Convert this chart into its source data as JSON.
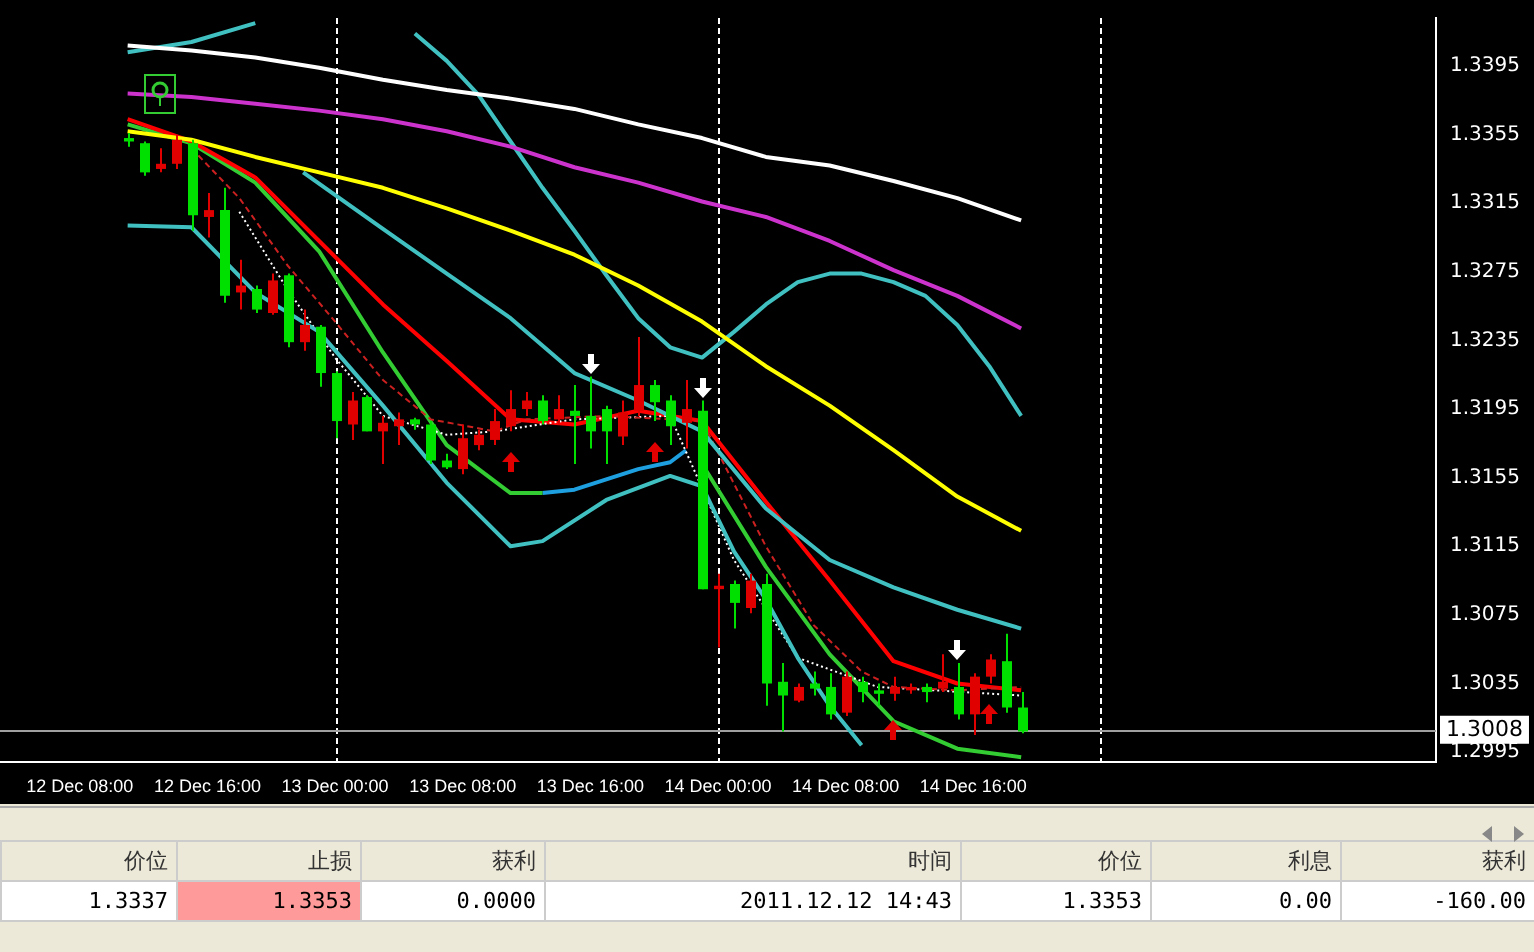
{
  "chart_data": {
    "type": "candlestick",
    "x": [
      "2011-12-12T11:00",
      "2011-12-12T12:00",
      "2011-12-12T13:00",
      "2011-12-12T14:00",
      "2011-12-12T15:00",
      "2011-12-12T16:00",
      "2011-12-12T17:00",
      "2011-12-12T18:00",
      "2011-12-12T19:00",
      "2011-12-12T20:00",
      "2011-12-12T21:00",
      "2011-12-12T22:00",
      "2011-12-12T23:00",
      "2011-12-13T00:00",
      "2011-12-13T01:00",
      "2011-12-13T02:00",
      "2011-12-13T03:00",
      "2011-12-13T04:00",
      "2011-12-13T05:00",
      "2011-12-13T06:00",
      "2011-12-13T07:00",
      "2011-12-13T08:00",
      "2011-12-13T09:00",
      "2011-12-13T10:00",
      "2011-12-13T11:00",
      "2011-12-13T12:00",
      "2011-12-13T13:00",
      "2011-12-13T14:00",
      "2011-12-13T15:00",
      "2011-12-13T16:00",
      "2011-12-13T17:00",
      "2011-12-13T18:00",
      "2011-12-13T19:00",
      "2011-12-13T20:00",
      "2011-12-13T21:00",
      "2011-12-13T22:00",
      "2011-12-13T23:00",
      "2011-12-14T00:00",
      "2011-12-14T01:00",
      "2011-12-14T02:00",
      "2011-12-14T03:00",
      "2011-12-14T04:00",
      "2011-12-14T05:00",
      "2011-12-14T06:00",
      "2011-12-14T07:00",
      "2011-12-14T08:00",
      "2011-12-14T09:00",
      "2011-12-14T10:00",
      "2011-12-14T11:00",
      "2011-12-14T12:00",
      "2011-12-14T13:00",
      "2011-12-14T14:00",
      "2011-12-14T15:00",
      "2011-12-14T16:00",
      "2011-12-14T17:00",
      "2011-12-14T18:00",
      "2011-12-14T19:00"
    ],
    "ohlc": [
      [
        1.3353,
        1.3356,
        1.3348,
        1.3351
      ],
      [
        1.335,
        1.3351,
        1.3331,
        1.3333
      ],
      [
        1.3335,
        1.3347,
        1.3333,
        1.3338
      ],
      [
        1.3338,
        1.3355,
        1.3335,
        1.3352
      ],
      [
        1.335,
        1.3352,
        1.3299,
        1.3308
      ],
      [
        1.3307,
        1.3321,
        1.3295,
        1.3311
      ],
      [
        1.3311,
        1.3324,
        1.3257,
        1.3261
      ],
      [
        1.3263,
        1.3282,
        1.3253,
        1.3267
      ],
      [
        1.3265,
        1.3267,
        1.3251,
        1.3253
      ],
      [
        1.3251,
        1.3274,
        1.325,
        1.327
      ],
      [
        1.3273,
        1.3274,
        1.3231,
        1.3234
      ],
      [
        1.3234,
        1.3253,
        1.3229,
        1.3244
      ],
      [
        1.3243,
        1.3244,
        1.3208,
        1.3216
      ],
      [
        1.3216,
        1.3217,
        1.3178,
        1.3188
      ],
      [
        1.3186,
        1.3205,
        1.3177,
        1.32
      ],
      [
        1.3202,
        1.3203,
        1.3182,
        1.3182
      ],
      [
        1.3182,
        1.3191,
        1.3163,
        1.3187
      ],
      [
        1.3185,
        1.3193,
        1.3174,
        1.3189
      ],
      [
        1.3189,
        1.319,
        1.3183,
        1.3186
      ],
      [
        1.3186,
        1.3188,
        1.3163,
        1.3165
      ],
      [
        1.3165,
        1.3169,
        1.316,
        1.3161
      ],
      [
        1.316,
        1.3186,
        1.3157,
        1.3178
      ],
      [
        1.3174,
        1.3183,
        1.3171,
        1.318
      ],
      [
        1.3177,
        1.3195,
        1.3174,
        1.3188
      ],
      [
        1.3185,
        1.3206,
        1.3182,
        1.3195
      ],
      [
        1.3195,
        1.3205,
        1.3191,
        1.32
      ],
      [
        1.32,
        1.3203,
        1.3186,
        1.3188
      ],
      [
        1.3189,
        1.3203,
        1.3186,
        1.3195
      ],
      [
        1.3194,
        1.3209,
        1.3163,
        1.3191
      ],
      [
        1.3191,
        1.3214,
        1.3172,
        1.3182
      ],
      [
        1.3195,
        1.3197,
        1.3163,
        1.3182
      ],
      [
        1.3179,
        1.32,
        1.3174,
        1.3193
      ],
      [
        1.3194,
        1.3237,
        1.3191,
        1.3209
      ],
      [
        1.3209,
        1.3212,
        1.3188,
        1.3199
      ],
      [
        1.32,
        1.3203,
        1.3174,
        1.3185
      ],
      [
        1.3187,
        1.3212,
        1.3172,
        1.3195
      ],
      [
        1.3194,
        1.32,
        1.309,
        1.309
      ],
      [
        1.309,
        1.3099,
        1.3056,
        1.3092
      ],
      [
        1.3093,
        1.3095,
        1.3067,
        1.3082
      ],
      [
        1.3079,
        1.3099,
        1.3076,
        1.3095
      ],
      [
        1.3093,
        1.3099,
        1.3022,
        1.3035
      ],
      [
        1.3036,
        1.3047,
        1.3007,
        1.3028
      ],
      [
        1.3025,
        1.3035,
        1.3024,
        1.3033
      ],
      [
        1.3035,
        1.3042,
        1.3028,
        1.3032
      ],
      [
        1.3033,
        1.3041,
        1.3014,
        1.3017
      ],
      [
        1.3018,
        1.3042,
        1.3016,
        1.3039
      ],
      [
        1.3036,
        1.3039,
        1.3024,
        1.303
      ],
      [
        1.3031,
        1.3035,
        1.3022,
        1.3029
      ],
      [
        1.3029,
        1.3039,
        1.3025,
        1.3033
      ],
      [
        1.3031,
        1.3035,
        1.3029,
        1.3033
      ],
      [
        1.3033,
        1.3035,
        1.3024,
        1.303
      ],
      [
        1.3032,
        1.3052,
        1.303,
        1.3036
      ],
      [
        1.3033,
        1.3047,
        1.3014,
        1.3017
      ],
      [
        1.3017,
        1.3041,
        1.3005,
        1.3039
      ],
      [
        1.3039,
        1.3052,
        1.3035,
        1.3049
      ],
      [
        1.3048,
        1.3064,
        1.3018,
        1.3021
      ],
      [
        1.3021,
        1.303,
        1.3006,
        1.3007
      ]
    ],
    "colors": [
      "#00e000",
      "#00e000",
      "#e00000",
      "#e00000",
      "#00e000",
      "#e00000",
      "#00e000",
      "#e00000",
      "#00e000",
      "#e00000",
      "#00e000",
      "#e00000",
      "#00e000",
      "#00e000",
      "#e00000",
      "#00e000",
      "#e00000",
      "#e00000",
      "#00e000",
      "#00e000",
      "#00e000",
      "#e00000",
      "#e00000",
      "#e00000",
      "#e00000",
      "#e00000",
      "#00e000",
      "#e00000",
      "#00e000",
      "#00e000",
      "#00e000",
      "#e00000",
      "#e00000",
      "#00e000",
      "#00e000",
      "#e00000",
      "#00e000",
      "#e00000",
      "#00e000",
      "#e00000",
      "#00e000",
      "#00e000",
      "#e00000",
      "#00e000",
      "#00e000",
      "#e00000",
      "#00e000",
      "#00e000",
      "#e00000",
      "#e00000",
      "#00e000",
      "#e00000",
      "#00e000",
      "#e00000",
      "#e00000",
      "#00e000",
      "#00e000"
    ],
    "series": [
      {
        "type": "line",
        "color": "#ffffff",
        "x": [
          "2011-12-12T11:00",
          "2011-12-12T15:00",
          "2011-12-12T19:00",
          "2011-12-12T23:00",
          "2011-12-13T03:00",
          "2011-12-13T07:00",
          "2011-12-13T11:00",
          "2011-12-13T15:00",
          "2011-12-13T19:00",
          "2011-12-13T23:00",
          "2011-12-14T03:00",
          "2011-12-14T07:00",
          "2011-12-14T11:00",
          "2011-12-14T15:00",
          "2011-12-14T19:00"
        ],
        "values": [
          1.3407,
          1.3404,
          1.34,
          1.3394,
          1.3387,
          1.3381,
          1.3376,
          1.337,
          1.3361,
          1.3353,
          1.3342,
          1.3337,
          1.3328,
          1.3318,
          1.3305
        ]
      },
      {
        "type": "line",
        "color": "#cc33cc",
        "x": [
          "2011-12-12T11:00",
          "2011-12-12T15:00",
          "2011-12-12T19:00",
          "2011-12-12T23:00",
          "2011-12-13T03:00",
          "2011-12-13T07:00",
          "2011-12-13T11:00",
          "2011-12-13T15:00",
          "2011-12-13T19:00",
          "2011-12-13T23:00",
          "2011-12-14T03:00",
          "2011-12-14T07:00",
          "2011-12-14T11:00",
          "2011-12-14T15:00",
          "2011-12-14T19:00"
        ],
        "values": [
          1.3379,
          1.3377,
          1.3373,
          1.3369,
          1.3364,
          1.3357,
          1.3348,
          1.3336,
          1.3327,
          1.3316,
          1.3307,
          1.3293,
          1.3276,
          1.3261,
          1.3242
        ]
      },
      {
        "type": "line",
        "color": "#ffff00",
        "x": [
          "2011-12-12T11:00",
          "2011-12-12T15:00",
          "2011-12-12T19:00",
          "2011-12-12T23:00",
          "2011-12-13T03:00",
          "2011-12-13T07:00",
          "2011-12-13T11:00",
          "2011-12-13T15:00",
          "2011-12-13T19:00",
          "2011-12-13T23:00",
          "2011-12-14T03:00",
          "2011-12-14T07:00",
          "2011-12-14T11:00",
          "2011-12-14T15:00",
          "2011-12-14T19:00"
        ],
        "values": [
          1.3357,
          1.3352,
          1.3342,
          1.3333,
          1.3324,
          1.3312,
          1.3299,
          1.3285,
          1.3267,
          1.3246,
          1.322,
          1.3197,
          1.3171,
          1.3144,
          1.3124
        ]
      },
      {
        "type": "line",
        "color": "#40c0c0",
        "x": [
          "2011-12-12T11:00",
          "2011-12-12T15:00",
          "2011-12-12T19:00",
          "2011-12-12T21:00",
          "2011-12-13T05:00",
          "2011-12-13T07:00",
          "2011-12-13T09:00",
          "2011-12-13T11:00",
          "2011-12-13T13:00",
          "2011-12-13T15:00",
          "2011-12-13T17:00",
          "2011-12-13T19:00",
          "2011-12-13T21:00",
          "2011-12-13T23:00",
          "2011-12-14T01:00",
          "2011-12-14T03:00",
          "2011-12-14T05:00",
          "2011-12-14T07:00",
          "2011-12-14T09:00",
          "2011-12-14T11:00",
          "2011-12-14T13:00",
          "2011-12-14T15:00",
          "2011-12-14T17:00",
          "2011-12-14T19:00"
        ],
        "values": [
          1.3403,
          1.3409,
          1.342,
          null,
          1.3414,
          1.3398,
          1.3378,
          1.3351,
          1.3324,
          1.3299,
          1.3273,
          1.3248,
          1.3231,
          1.3225,
          1.324,
          1.3256,
          1.3269,
          1.3274,
          1.3274,
          1.3269,
          1.3261,
          1.3244,
          1.322,
          1.3191
        ]
      },
      {
        "type": "line",
        "color": "#40c0c0",
        "x": [
          "2011-12-12T22:00",
          "2011-12-13T03:00",
          "2011-12-13T07:00",
          "2011-12-13T11:00",
          "2011-12-13T15:00",
          "2011-12-13T19:00",
          "2011-12-13T23:00",
          "2011-12-14T03:00",
          "2011-12-14T07:00",
          "2011-12-14T11:00",
          "2011-12-14T15:00",
          "2011-12-14T19:00"
        ],
        "values": [
          1.3333,
          1.33,
          1.3274,
          1.3248,
          1.3216,
          1.32,
          1.3182,
          1.3137,
          1.3107,
          1.3091,
          1.3078,
          1.3067
        ]
      },
      {
        "type": "line",
        "color": "#40c0c0",
        "x": [
          "2011-12-12T11:00",
          "2011-12-12T15:00",
          "2011-12-12T19:00",
          "2011-12-12T23:00",
          "2011-12-13T03:00",
          "2011-12-13T07:00",
          "2011-12-13T11:00",
          "2011-12-13T13:00",
          "2011-12-13T17:00",
          "2011-12-13T21:00",
          "2011-12-13T23:00",
          "2011-12-14T01:00",
          "2011-12-14T03:00",
          "2011-12-14T05:00",
          "2011-12-14T07:00",
          "2011-12-14T09:00"
        ],
        "values": [
          1.3302,
          1.3301,
          1.3263,
          1.324,
          1.3197,
          1.3152,
          1.3115,
          1.3118,
          1.3142,
          1.3156,
          1.315,
          1.3112,
          1.3084,
          1.305,
          1.3022,
          1.2999
        ]
      },
      {
        "type": "line",
        "color": "#cc2020",
        "line_style": "dashed",
        "x": [
          "2011-12-12T15:00",
          "2011-12-12T18:00",
          "2011-12-12T21:00",
          "2011-12-13T00:00",
          "2011-12-13T03:00",
          "2011-12-13T06:00",
          "2011-12-13T10:00",
          "2011-12-13T12:00",
          "2011-12-13T17:00",
          "2011-12-13T23:00",
          "2011-12-14T03:00",
          "2011-12-14T06:00",
          "2011-12-14T09:00",
          "2011-12-14T11:00",
          "2011-12-14T15:00",
          "2011-12-14T19:00"
        ],
        "values": [
          1.3347,
          1.3318,
          1.3279,
          1.3246,
          1.3212,
          1.3189,
          1.3182,
          1.3189,
          1.3191,
          1.3188,
          1.3115,
          1.3069,
          1.3042,
          1.3033,
          1.3031,
          1.3033
        ]
      },
      {
        "type": "line",
        "color": "#ffffff",
        "line_style": "dotted",
        "x": [
          "2011-12-12T18:00",
          "2011-12-12T21:00",
          "2011-12-13T00:00",
          "2011-12-13T03:00",
          "2011-12-13T07:00",
          "2011-12-13T10:00",
          "2011-12-13T15:00",
          "2011-12-13T21:00",
          "2011-12-14T01:00",
          "2011-12-14T05:00",
          "2011-12-14T10:00",
          "2011-12-14T19:00"
        ],
        "values": [
          1.331,
          1.3265,
          1.3225,
          1.3191,
          1.318,
          1.3182,
          1.3189,
          1.3191,
          1.3107,
          1.305,
          1.3033,
          1.3028
        ]
      },
      {
        "type": "line",
        "color": "#ff0000",
        "x": [
          "2011-12-12T11:00",
          "2011-12-12T15:00",
          "2011-12-12T19:00",
          "2011-12-12T23:00",
          "2011-12-13T03:00",
          "2011-12-13T07:00",
          "2011-12-13T11:00",
          "2011-12-13T15:00",
          "2011-12-13T19:00",
          "2011-12-13T23:00",
          "2011-12-14T03:00",
          "2011-12-14T07:00",
          "2011-12-14T11:00",
          "2011-12-14T15:00",
          "2011-12-14T19:00"
        ],
        "values": [
          1.3364,
          1.3351,
          1.333,
          1.3293,
          1.3256,
          1.3223,
          1.3189,
          1.3186,
          1.3194,
          1.3188,
          1.3141,
          1.3095,
          1.3048,
          1.3035,
          1.3031
        ]
      },
      {
        "type": "line",
        "color": "#33cc33",
        "x": [
          "2011-12-12T11:00",
          "2011-12-12T15:00",
          "2011-12-12T19:00",
          "2011-12-12T23:00",
          "2011-12-13T03:00",
          "2011-12-13T07:00",
          "2011-12-13T11:00",
          "2011-12-13T13:00",
          "2011-12-13T18:00",
          "2011-12-13T23:00",
          "2011-12-14T03:00",
          "2011-12-14T07:00",
          "2011-12-14T11:00",
          "2011-12-14T15:00",
          "2011-12-14T19:00"
        ],
        "values": [
          1.3361,
          1.335,
          1.3327,
          1.3287,
          1.3228,
          1.3174,
          1.3146,
          1.3146,
          null,
          1.3163,
          1.3103,
          1.3052,
          1.3013,
          1.2997,
          1.2992
        ]
      },
      {
        "type": "line",
        "color": "#1ea0e0",
        "x": [
          "2011-12-13T13:00",
          "2011-12-13T15:00",
          "2011-12-13T19:00",
          "2011-12-13T21:00",
          "2011-12-13T22:00"
        ],
        "values": [
          1.3146,
          1.3148,
          1.316,
          1.3164,
          1.3171
        ]
      }
    ],
    "xlim": [
      "2011-12-12T03:00",
      "2011-12-15T21:00"
    ],
    "xticks": [
      {
        "value": "2011-12-12T08:00",
        "label": "12 Dec 08:00"
      },
      {
        "value": "2011-12-12T16:00",
        "label": "12 Dec 16:00"
      },
      {
        "value": "2011-12-13T00:00",
        "label": "13 Dec 00:00"
      },
      {
        "value": "2011-12-13T08:00",
        "label": "13 Dec 08:00"
      },
      {
        "value": "2011-12-13T16:00",
        "label": "13 Dec 16:00"
      },
      {
        "value": "2011-12-14T00:00",
        "label": "14 Dec 00:00"
      },
      {
        "value": "2011-12-14T08:00",
        "label": "14 Dec 08:00"
      },
      {
        "value": "2011-12-14T16:00",
        "label": "14 Dec 16:00"
      }
    ],
    "ylim": [
      1.2989,
      1.3423
    ],
    "yticks": [
      1.2995,
      1.3035,
      1.3075,
      1.3115,
      1.3155,
      1.3195,
      1.3235,
      1.3275,
      1.3315,
      1.3355,
      1.3395
    ],
    "ref_lines": [
      {
        "axis": "x",
        "value": "2011-12-13T00:00",
        "label": null,
        "color": "#ffffff",
        "line_style": "dashed"
      },
      {
        "axis": "x",
        "value": "2011-12-14T00:00",
        "label": null,
        "color": "#ffffff",
        "line_style": "dashed"
      },
      {
        "axis": "x",
        "value": "2011-12-15T00:00",
        "label": null,
        "color": "#ffffff",
        "line_style": "dashed"
      },
      {
        "axis": "y",
        "value": 1.3008,
        "label": "1.3008",
        "color": "#a0a0a0",
        "line_style": "solid"
      }
    ],
    "annotations": [
      "价位",
      "止损",
      "获利",
      "时间",
      "价位",
      "利息",
      "获利",
      "1.3337",
      "1.3353",
      "0.0000",
      "2011.12.12 14:43",
      "1.3353",
      "0.00",
      "-160.00"
    ],
    "grid": false,
    "legend": false
  }
}
